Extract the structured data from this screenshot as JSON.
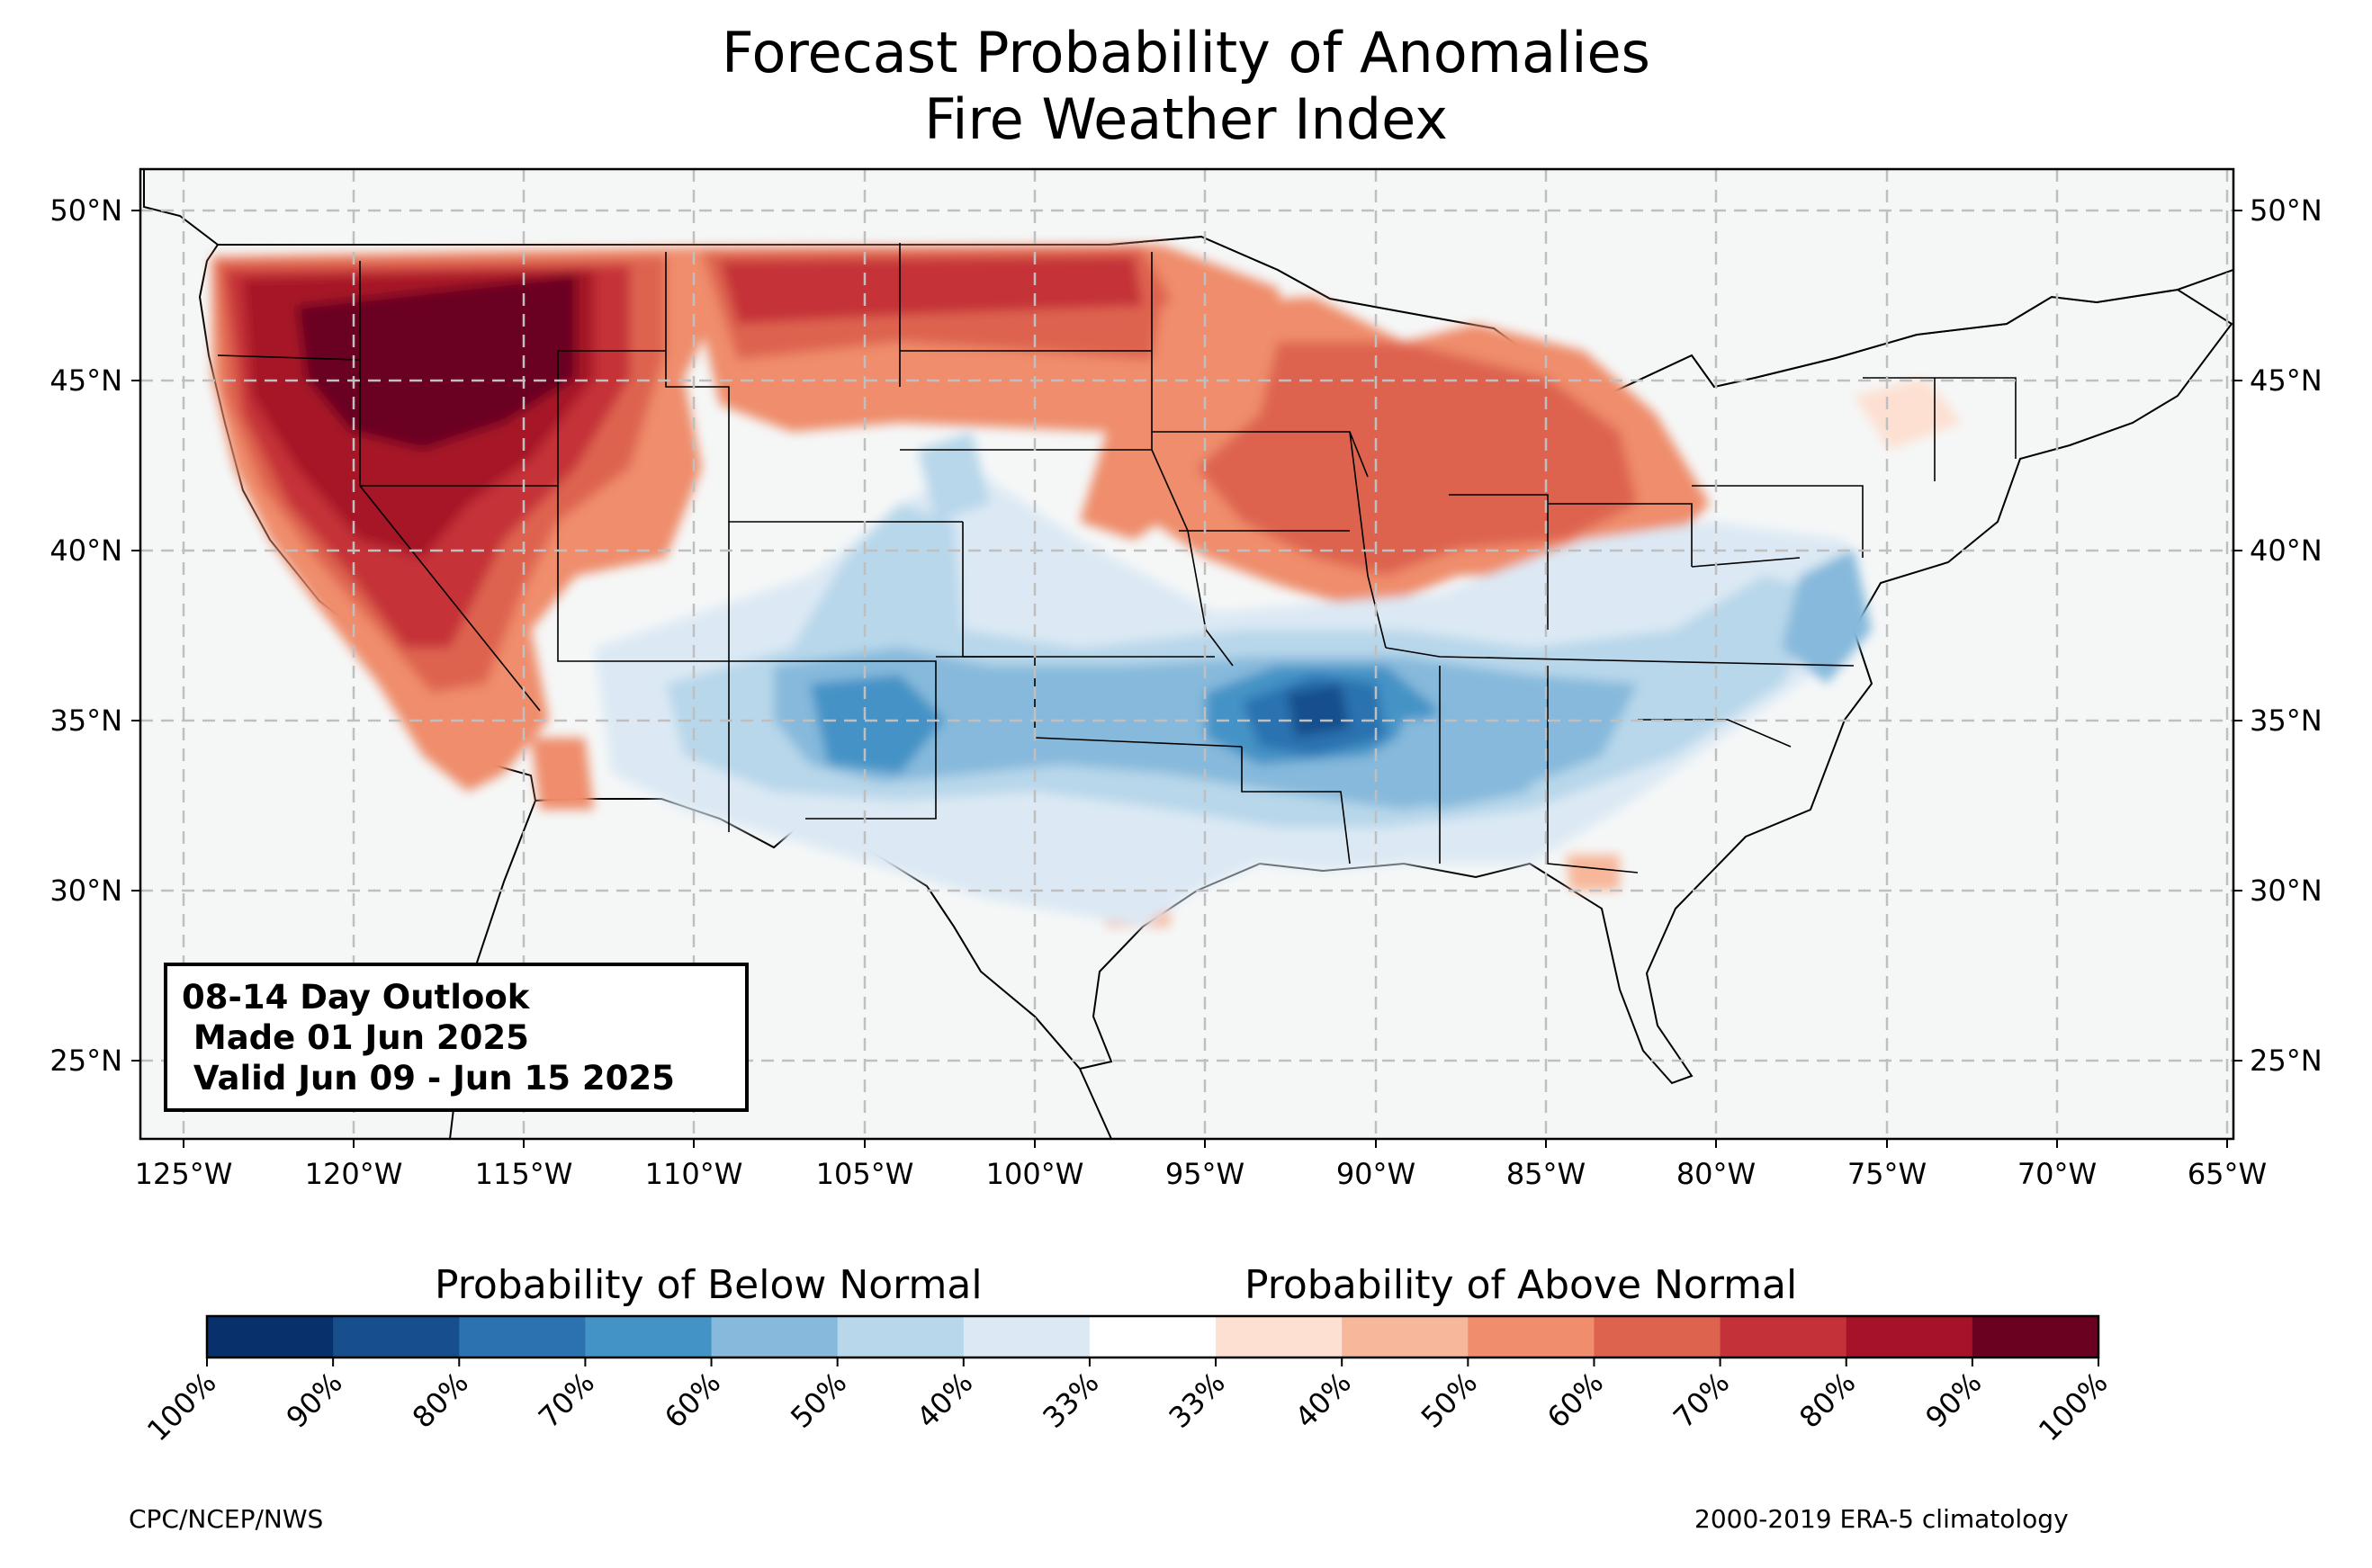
{
  "title": {
    "line1": "Forecast Probability of Anomalies",
    "line2": "Fire Weather Index"
  },
  "outlook": {
    "line1": "08-14 Day Outlook",
    "line2": " Made 01 Jun 2025",
    "line3": " Valid Jun 09 - Jun 15 2025"
  },
  "map": {
    "lon_range": [
      -126.2,
      -64.9
    ],
    "lat_range": [
      22.7,
      51.2
    ],
    "lon_ticks": [
      "125°W",
      "120°W",
      "115°W",
      "110°W",
      "105°W",
      "100°W",
      "95°W",
      "90°W",
      "85°W",
      "80°W",
      "75°W",
      "70°W",
      "65°W"
    ],
    "lat_ticks": [
      "50°N",
      "45°N",
      "40°N",
      "35°N",
      "30°N",
      "25°N"
    ],
    "gridlines": true,
    "ocean_color": "#f5f7f7"
  },
  "colorbar": {
    "below_label": "Probability of Below Normal",
    "above_label": "Probability of Above Normal",
    "tick_labels": [
      "100%",
      "90%",
      "80%",
      "70%",
      "60%",
      "50%",
      "40%",
      "33%",
      "33%",
      "40%",
      "50%",
      "60%",
      "70%",
      "80%",
      "90%",
      "100%"
    ],
    "colors": [
      "#08306b",
      "#174f8c",
      "#2c72b0",
      "#4493c6",
      "#86b9dc",
      "#b8d7ea",
      "#dce9f4",
      "#ffffff",
      "#fde0d1",
      "#f7b79b",
      "#ef8d6c",
      "#de634f",
      "#c53139",
      "#a61328",
      "#6a0120"
    ]
  },
  "credits": {
    "left": "CPC/NCEP/NWS",
    "right": "2000-2019 ERA-5 climatology"
  }
}
